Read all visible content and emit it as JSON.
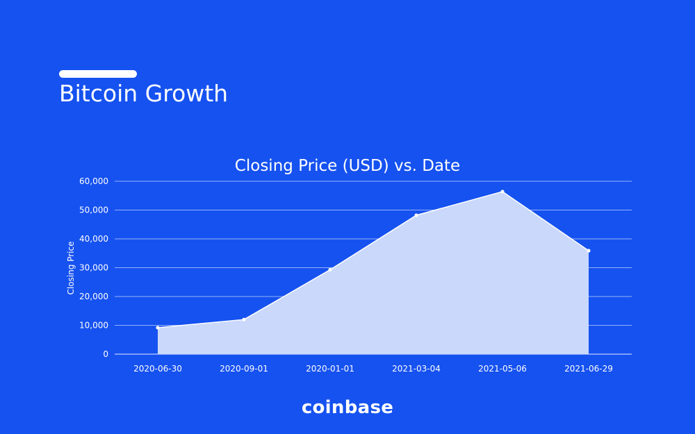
{
  "page": {
    "title": "Bitcoin Growth",
    "brand": "coinbase"
  },
  "colors": {
    "background": "#1652f0",
    "area_fill": "#c9d8fb",
    "line": "#ffffff",
    "grid": "#ffffff"
  },
  "chart_data": {
    "type": "area",
    "title": "Closing Price (USD) vs. Date",
    "xlabel": "",
    "ylabel": "Closing Price",
    "categories": [
      "2020-06-30",
      "2020-09-01",
      "2020-01-01",
      "2021-03-04",
      "2021-05-06",
      "2021-06-29"
    ],
    "series": [
      {
        "values": [
          9200,
          12000,
          29300,
          48200,
          56400,
          35900
        ]
      }
    ],
    "ylim": [
      0,
      60000
    ],
    "yticks": [
      0,
      10000,
      20000,
      30000,
      40000,
      50000,
      60000
    ],
    "ytick_labels": [
      "0",
      "10,000",
      "20,000",
      "30,000",
      "40,000",
      "50,000",
      "60,000"
    ],
    "grid": true,
    "legend": "none"
  }
}
